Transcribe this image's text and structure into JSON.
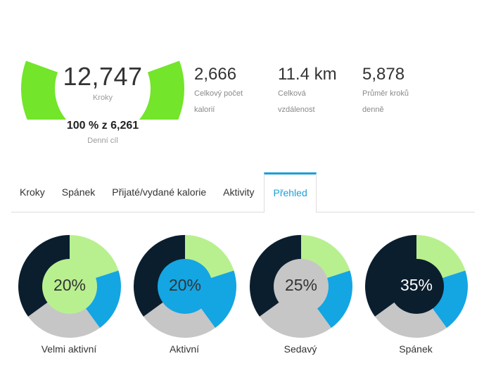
{
  "summary": {
    "steps_value": "12,747",
    "steps_label": "Kroky",
    "goal_value": "100 % z 6,261",
    "goal_label": "Denní cíl",
    "goal_progress": 1.0
  },
  "stats": [
    {
      "value": "2,666",
      "label_line1": "Celkový počet",
      "label_line2": "kalorií"
    },
    {
      "value": "11.4 km",
      "label_line1": "Celková",
      "label_line2": "vzdálenost"
    },
    {
      "value": "5,878",
      "label_line1": "Průměr kroků",
      "label_line2": "denně"
    }
  ],
  "tabs": [
    {
      "label": "Kroky",
      "active": false
    },
    {
      "label": "Spánek",
      "active": false
    },
    {
      "label": "Přijaté/vydané kalorie",
      "active": false
    },
    {
      "label": "Aktivity",
      "active": false
    },
    {
      "label": "Přehled",
      "active": true
    }
  ],
  "colors": {
    "gauge": "#73e52a",
    "very_active": "#b8f08f",
    "active": "#14a5e3",
    "sedentary": "#c6c6c6",
    "sleep": "#0b1e2e",
    "tab_accent": "#1a9fd9"
  },
  "activity_breakdown": {
    "segments": [
      {
        "name": "Velmi aktivní",
        "percent": 20
      },
      {
        "name": "Aktivní",
        "percent": 20
      },
      {
        "name": "Sedavý",
        "percent": 25
      },
      {
        "name": "Spánek",
        "percent": 35
      }
    ],
    "donuts": [
      {
        "label": "Velmi aktivní",
        "percent_text": "20%",
        "highlight": "very_active",
        "text_color": "#333333"
      },
      {
        "label": "Aktivní",
        "percent_text": "20%",
        "highlight": "active",
        "text_color": "#333333"
      },
      {
        "label": "Sedavý",
        "percent_text": "25%",
        "highlight": "sedentary",
        "text_color": "#333333"
      },
      {
        "label": "Spánek",
        "percent_text": "35%",
        "highlight": "sleep",
        "text_color": "#ffffff"
      }
    ]
  }
}
